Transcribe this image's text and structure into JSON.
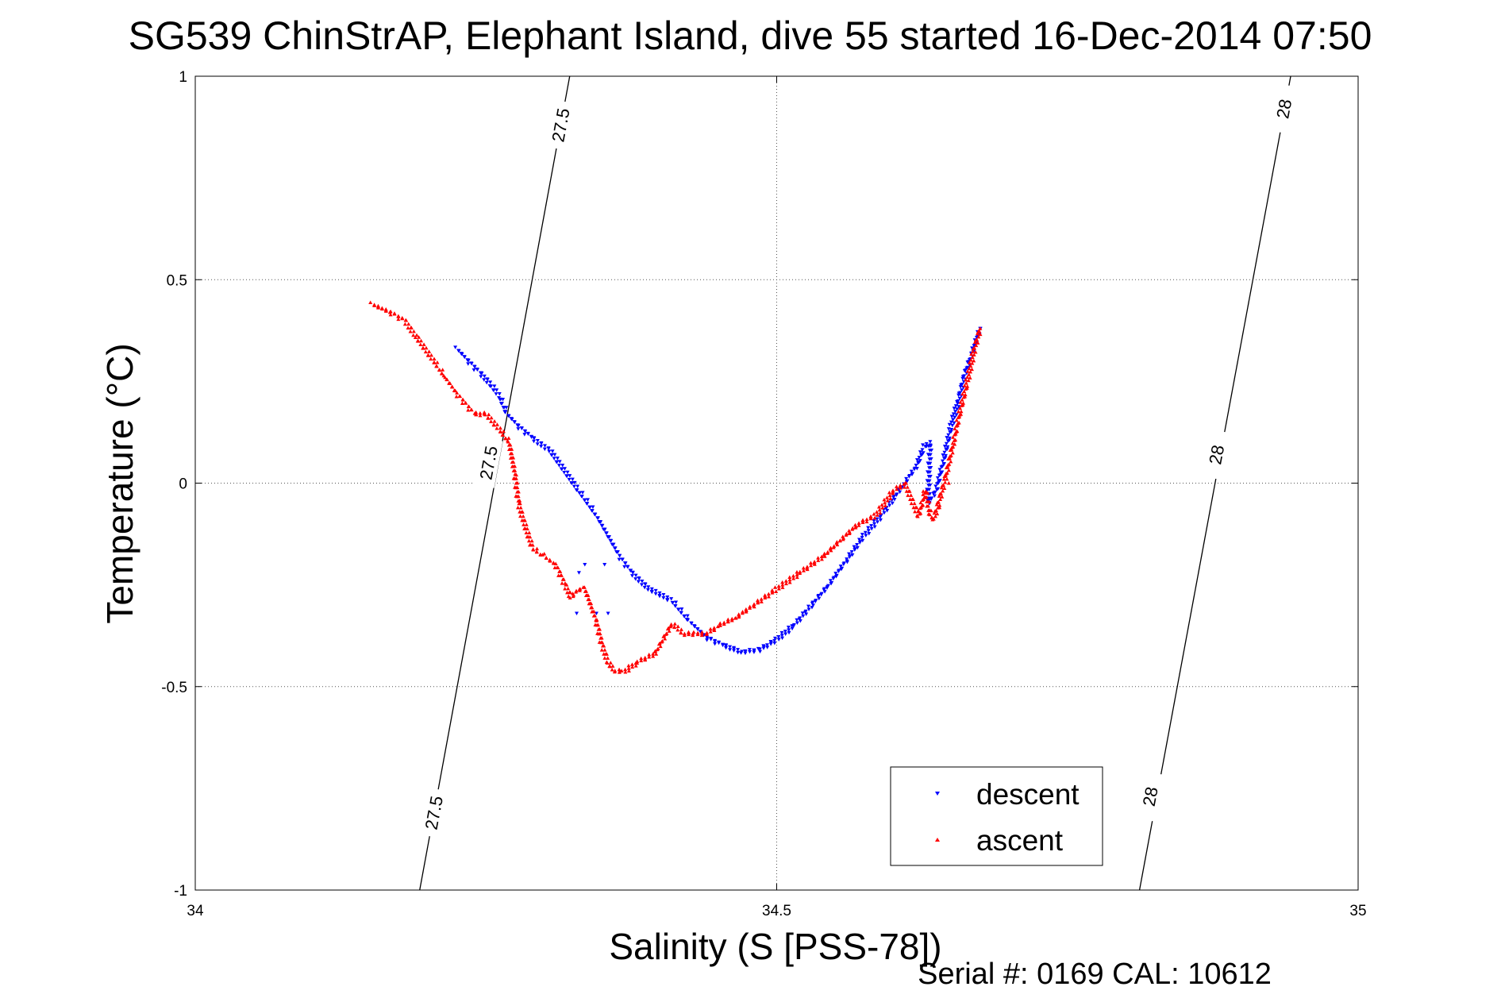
{
  "chart_data": {
    "type": "scatter",
    "title": "SG539 ChinStrAP, Elephant Island, dive 55 started 16-Dec-2014 07:50",
    "xlabel": "Salinity (S [PSS-78])",
    "ylabel": "Temperature (°C)",
    "footer": "Serial #: 0169 CAL: 10612",
    "xlim": [
      34,
      35
    ],
    "ylim": [
      -1,
      1
    ],
    "xticks": [
      34,
      34.5,
      35
    ],
    "xtick_labels": [
      "34",
      "34.5",
      "35"
    ],
    "yticks": [
      -1,
      -0.5,
      0,
      0.5,
      1
    ],
    "ytick_labels": [
      "-1",
      "-0.5",
      "0",
      "0.5",
      "1"
    ],
    "grid": true,
    "legend_position": "bottom-right",
    "colors": {
      "descent": "#0000ff",
      "ascent": "#ff0000",
      "contour": "#000000"
    },
    "contours": [
      {
        "value": "27.5",
        "x": [
          34.193,
          34.322
        ],
        "labels": [
          {
            "text": "27.5",
            "x": 34.205,
            "y": -0.81
          },
          {
            "text": "27.5",
            "x": 34.252,
            "y": 0.05
          },
          {
            "text": "27.5",
            "x": 34.314,
            "y": 0.88
          }
        ]
      },
      {
        "value": "28",
        "x": [
          34.812,
          34.942
        ],
        "labels": [
          {
            "text": "28",
            "x": 34.821,
            "y": -0.77
          },
          {
            "text": "28",
            "x": 34.878,
            "y": 0.07
          },
          {
            "text": "28",
            "x": 34.936,
            "y": 0.92
          }
        ]
      }
    ],
    "series": [
      {
        "name": "descent",
        "marker": "triangle-down",
        "path_x": [
          34.225,
          34.235,
          34.245,
          34.255,
          34.262,
          34.268,
          34.278,
          34.29,
          34.305,
          34.33,
          34.345,
          34.365,
          34.375,
          34.39,
          34.41,
          34.425,
          34.44,
          34.455,
          34.47,
          34.485,
          34.5,
          34.515,
          34.53,
          34.545,
          34.56,
          34.575,
          34.59,
          34.6,
          34.61,
          34.62,
          34.627,
          34.632,
          34.63,
          34.637,
          34.643,
          34.65,
          34.656,
          34.662,
          34.668,
          34.675
        ],
        "path_y": [
          0.33,
          0.3,
          0.27,
          0.24,
          0.21,
          0.17,
          0.14,
          0.11,
          0.08,
          -0.02,
          -0.08,
          -0.18,
          -0.22,
          -0.26,
          -0.29,
          -0.34,
          -0.38,
          -0.4,
          -0.415,
          -0.41,
          -0.385,
          -0.35,
          -0.3,
          -0.25,
          -0.19,
          -0.13,
          -0.08,
          -0.04,
          0.0,
          0.04,
          0.09,
          0.1,
          -0.05,
          -0.02,
          0.05,
          0.14,
          0.2,
          0.27,
          0.32,
          0.38
        ],
        "extra_x": [
          34.328,
          34.33,
          34.335,
          34.345,
          34.352,
          34.355
        ],
        "extra_y": [
          -0.32,
          -0.22,
          -0.2,
          -0.32,
          -0.2,
          -0.32
        ]
      },
      {
        "name": "ascent",
        "marker": "triangle-up",
        "path_x": [
          34.152,
          34.168,
          34.18,
          34.19,
          34.205,
          34.215,
          34.225,
          34.24,
          34.25,
          34.262,
          34.27,
          34.275,
          34.278,
          34.283,
          34.29,
          34.3,
          34.31,
          34.318,
          34.323,
          34.33,
          34.335,
          34.345,
          34.35,
          34.355,
          34.36,
          34.368,
          34.38,
          34.395,
          34.41,
          34.42,
          34.43,
          34.44,
          34.45,
          34.465,
          34.48,
          34.5,
          34.52,
          34.54,
          34.555,
          34.57,
          34.585,
          34.6,
          34.61,
          34.622,
          34.628,
          34.632,
          34.635,
          34.645,
          34.652,
          34.658,
          34.664,
          34.67,
          34.675
        ],
        "path_y": [
          0.44,
          0.42,
          0.4,
          0.36,
          0.3,
          0.26,
          0.22,
          0.17,
          0.17,
          0.13,
          0.1,
          0.02,
          -0.05,
          -0.1,
          -0.16,
          -0.18,
          -0.2,
          -0.25,
          -0.28,
          -0.26,
          -0.26,
          -0.34,
          -0.4,
          -0.44,
          -0.46,
          -0.465,
          -0.44,
          -0.42,
          -0.345,
          -0.37,
          -0.37,
          -0.37,
          -0.35,
          -0.33,
          -0.3,
          -0.26,
          -0.22,
          -0.18,
          -0.14,
          -0.1,
          -0.08,
          -0.02,
          0.0,
          -0.08,
          -0.02,
          -0.08,
          -0.09,
          0.01,
          0.1,
          0.18,
          0.25,
          0.33,
          0.38
        ],
        "extra_x": [
          34.648,
          34.64,
          34.626
        ],
        "extra_y": [
          0.0,
          -0.06,
          -0.02
        ]
      }
    ]
  },
  "legend": {
    "descent_label": "descent",
    "ascent_label": "ascent"
  }
}
